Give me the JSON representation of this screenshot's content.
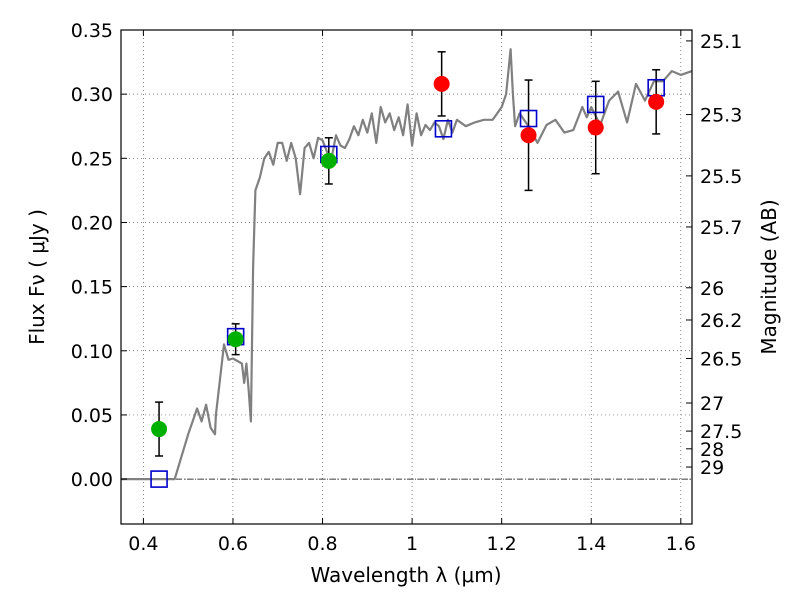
{
  "chart_data": {
    "type": "scatter",
    "xlabel": "Wavelength  λ (μm)",
    "ylabel": "Flux  Fν  ( μJy )",
    "y2label": "Magnitude (AB)",
    "xlim": [
      0.35,
      1.625
    ],
    "ylim": [
      -0.035,
      0.35
    ],
    "grid": true,
    "x_ticks": [
      {
        "value": 0.4,
        "label": "0.4"
      },
      {
        "value": 0.6,
        "label": "0.6"
      },
      {
        "value": 0.8,
        "label": "0.8"
      },
      {
        "value": 1.0,
        "label": "1"
      },
      {
        "value": 1.2,
        "label": "1.2"
      },
      {
        "value": 1.4,
        "label": "1.4"
      },
      {
        "value": 1.6,
        "label": "1.6"
      }
    ],
    "y_ticks": [
      {
        "value": 0.0,
        "label": "0.00"
      },
      {
        "value": 0.05,
        "label": "0.05"
      },
      {
        "value": 0.1,
        "label": "0.10"
      },
      {
        "value": 0.15,
        "label": "0.15"
      },
      {
        "value": 0.2,
        "label": "0.20"
      },
      {
        "value": 0.25,
        "label": "0.25"
      },
      {
        "value": 0.3,
        "label": "0.30"
      },
      {
        "value": 0.35,
        "label": "0.35"
      }
    ],
    "mag_ticks": [
      {
        "label": "25.1",
        "flux": 0.3415
      },
      {
        "label": "25.3",
        "flux": 0.2841
      },
      {
        "label": "25.5",
        "flux": 0.2363
      },
      {
        "label": "25.7",
        "flux": 0.1965
      },
      {
        "label": "26",
        "flux": 0.1491
      },
      {
        "label": "26.2",
        "flux": 0.124
      },
      {
        "label": "26.5",
        "flux": 0.094
      },
      {
        "label": "27",
        "flux": 0.0593
      },
      {
        "label": "27.5",
        "flux": 0.0374
      },
      {
        "label": "28",
        "flux": 0.0236
      },
      {
        "label": "29",
        "flux": 0.0094
      }
    ],
    "series": [
      {
        "kind": "model-spectrum",
        "color": "#808080",
        "x": [
          0.35,
          0.45,
          0.47,
          0.5,
          0.52,
          0.53,
          0.54,
          0.55,
          0.56,
          0.562,
          0.58,
          0.59,
          0.6,
          0.61,
          0.62,
          0.625,
          0.63,
          0.635,
          0.64,
          0.645,
          0.65,
          0.66,
          0.67,
          0.68,
          0.69,
          0.7,
          0.71,
          0.72,
          0.73,
          0.74,
          0.75,
          0.76,
          0.77,
          0.78,
          0.79,
          0.8,
          0.81,
          0.82,
          0.83,
          0.84,
          0.85,
          0.86,
          0.87,
          0.88,
          0.89,
          0.9,
          0.91,
          0.92,
          0.93,
          0.94,
          0.95,
          0.96,
          0.97,
          0.98,
          0.99,
          1.0,
          1.01,
          1.02,
          1.03,
          1.04,
          1.05,
          1.06,
          1.07,
          1.08,
          1.09,
          1.1,
          1.12,
          1.14,
          1.16,
          1.18,
          1.2,
          1.21,
          1.22,
          1.225,
          1.23,
          1.24,
          1.26,
          1.28,
          1.3,
          1.32,
          1.34,
          1.36,
          1.38,
          1.39,
          1.4,
          1.42,
          1.44,
          1.46,
          1.48,
          1.5,
          1.52,
          1.54,
          1.56,
          1.58,
          1.6,
          1.625
        ],
        "y": [
          0.0,
          0.0,
          0.0,
          0.035,
          0.055,
          0.045,
          0.058,
          0.04,
          0.035,
          0.05,
          0.105,
          0.093,
          0.094,
          0.092,
          0.09,
          0.075,
          0.09,
          0.07,
          0.045,
          0.165,
          0.225,
          0.235,
          0.25,
          0.255,
          0.245,
          0.262,
          0.262,
          0.248,
          0.262,
          0.25,
          0.222,
          0.258,
          0.262,
          0.25,
          0.266,
          0.264,
          0.255,
          0.25,
          0.268,
          0.26,
          0.258,
          0.265,
          0.275,
          0.268,
          0.28,
          0.27,
          0.285,
          0.262,
          0.29,
          0.278,
          0.285,
          0.272,
          0.282,
          0.268,
          0.292,
          0.26,
          0.285,
          0.268,
          0.276,
          0.272,
          0.278,
          0.275,
          0.265,
          0.28,
          0.27,
          0.28,
          0.275,
          0.278,
          0.28,
          0.28,
          0.29,
          0.3,
          0.335,
          0.3,
          0.275,
          0.285,
          0.275,
          0.262,
          0.276,
          0.28,
          0.27,
          0.272,
          0.29,
          0.282,
          0.29,
          0.276,
          0.295,
          0.302,
          0.278,
          0.308,
          0.295,
          0.31,
          0.31,
          0.318,
          0.315,
          0.318
        ]
      },
      {
        "kind": "observed-green",
        "color": "#00b000",
        "x": [
          0.435,
          0.606,
          0.814
        ],
        "y": [
          0.039,
          0.109,
          0.248
        ],
        "err": [
          0.021,
          0.012,
          0.018
        ]
      },
      {
        "kind": "observed-red",
        "color": "#ff0000",
        "x": [
          1.066,
          1.26,
          1.41,
          1.545
        ],
        "y": [
          0.308,
          0.268,
          0.274,
          0.294
        ],
        "err": [
          0.025,
          0.043,
          0.036,
          0.025
        ]
      },
      {
        "kind": "model-squares",
        "color": "#0000cc",
        "x": [
          0.435,
          0.606,
          0.814,
          1.07,
          1.26,
          1.41,
          1.545
        ],
        "y": [
          0.0,
          0.111,
          0.253,
          0.273,
          0.281,
          0.292,
          0.305
        ]
      }
    ]
  }
}
